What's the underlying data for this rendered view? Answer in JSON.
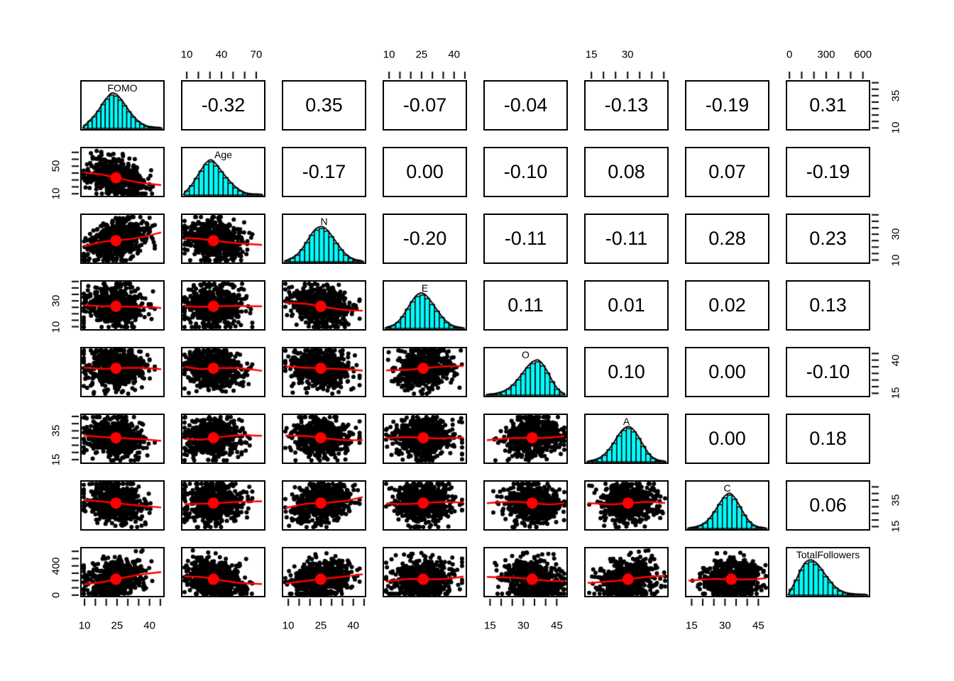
{
  "chart_data": {
    "type": "scatterplot-matrix",
    "title": "",
    "panel_layout": {
      "diagonal": "histogram-with-density",
      "upper_triangle": "correlation-coefficient",
      "lower_triangle": "scatter-with-trend-line"
    },
    "colors": {
      "histogram_fill": "#00ffff",
      "density_curve": "#000000",
      "trend_line": "#ff0000",
      "mean_dot": "#ff0000",
      "points": "#000000",
      "border": "#000000",
      "background": "#ffffff",
      "text": "#000000"
    },
    "variables": [
      {
        "name": "FOMO",
        "axis": {
          "range": [
            8,
            47
          ],
          "tick_step": 5,
          "first_tick": 10,
          "last_tick": 45,
          "h_labels": [
            "10",
            "25",
            "40"
          ],
          "v_labels": [
            "10",
            "35"
          ]
        },
        "hist": [
          0.1,
          0.22,
          0.35,
          0.52,
          0.72,
          0.88,
          1.0,
          0.97,
          0.85,
          0.68,
          0.5,
          0.34,
          0.21,
          0.12,
          0.06,
          0.03,
          0.015,
          0.008
        ],
        "center": 0.42
      },
      {
        "name": "Age",
        "axis": {
          "range": [
            5,
            78
          ],
          "tick_step": 10,
          "first_tick": 10,
          "last_tick": 70,
          "h_labels": [
            "10",
            "40",
            "70"
          ],
          "v_labels": [
            "10",
            "50"
          ]
        },
        "hist": [
          0.12,
          0.28,
          0.5,
          0.72,
          0.92,
          1.0,
          0.88,
          0.7,
          0.52,
          0.36,
          0.22,
          0.12,
          0.05,
          0.02,
          0.01,
          0.005
        ],
        "center": 0.38
      },
      {
        "name": "N",
        "axis": {
          "range": [
            7,
            46
          ],
          "tick_step": 5,
          "first_tick": 10,
          "last_tick": 45,
          "h_labels": [
            "10",
            "25",
            "40"
          ],
          "v_labels": [
            "10",
            "30"
          ]
        },
        "hist": [
          0.04,
          0.1,
          0.2,
          0.36,
          0.58,
          0.8,
          0.95,
          1.0,
          0.92,
          0.75,
          0.55,
          0.36,
          0.2,
          0.1,
          0.04,
          0.015
        ],
        "center": 0.46
      },
      {
        "name": "E",
        "axis": {
          "range": [
            7,
            46
          ],
          "tick_step": 5,
          "first_tick": 10,
          "last_tick": 45,
          "h_labels": [
            "10",
            "25",
            "40"
          ],
          "v_labels": [
            "10",
            "30"
          ]
        },
        "hist": [
          0.03,
          0.08,
          0.18,
          0.35,
          0.58,
          0.8,
          0.96,
          1.0,
          0.9,
          0.72,
          0.52,
          0.33,
          0.18,
          0.08,
          0.03,
          0.01
        ],
        "center": 0.48
      },
      {
        "name": "O",
        "axis": {
          "range": [
            12,
            50
          ],
          "tick_step": 5,
          "first_tick": 15,
          "last_tick": 45,
          "h_labels": [
            "15",
            "30",
            "45"
          ],
          "v_labels": [
            "15",
            "40"
          ]
        },
        "hist": [
          0.01,
          0.02,
          0.05,
          0.1,
          0.18,
          0.3,
          0.46,
          0.64,
          0.82,
          0.95,
          1.0,
          0.88,
          0.66,
          0.4,
          0.18,
          0.06
        ],
        "center": 0.58
      },
      {
        "name": "A",
        "axis": {
          "range": [
            12,
            47
          ],
          "tick_step": 5,
          "first_tick": 15,
          "last_tick": 45,
          "h_labels": [
            "15",
            "30"
          ],
          "v_labels": [
            "15",
            "35"
          ]
        },
        "hist": [
          0.01,
          0.04,
          0.1,
          0.2,
          0.36,
          0.56,
          0.78,
          0.94,
          1.0,
          0.9,
          0.7,
          0.46,
          0.24,
          0.1,
          0.03,
          0.01
        ],
        "center": 0.52
      },
      {
        "name": "C",
        "axis": {
          "range": [
            12,
            50
          ],
          "tick_step": 5,
          "first_tick": 15,
          "last_tick": 45,
          "h_labels": [
            "15",
            "30",
            "45"
          ],
          "v_labels": [
            "15",
            "35"
          ]
        },
        "hist": [
          0.01,
          0.03,
          0.08,
          0.16,
          0.3,
          0.5,
          0.72,
          0.92,
          1.0,
          0.88,
          0.65,
          0.4,
          0.2,
          0.08,
          0.025,
          0.008
        ],
        "center": 0.55
      },
      {
        "name": "TotalFollowers",
        "axis": {
          "range": [
            -30,
            660
          ],
          "tick_step": 100,
          "first_tick": 0,
          "last_tick": 600,
          "h_labels": [
            "0",
            "300",
            "600"
          ],
          "v_labels": [
            "0",
            "400"
          ]
        },
        "hist": [
          0.18,
          0.45,
          0.75,
          0.95,
          1.0,
          0.92,
          0.76,
          0.56,
          0.38,
          0.22,
          0.12,
          0.06,
          0.03,
          0.015,
          0.008,
          0.004
        ],
        "center": 0.35
      }
    ],
    "correlations": [
      [
        "",
        "-0.32",
        "0.35",
        "-0.07",
        "-0.04",
        "-0.13",
        "-0.19",
        "0.31"
      ],
      [
        "",
        "",
        "-0.17",
        "0.00",
        "-0.10",
        "0.08",
        "0.07",
        "-0.19"
      ],
      [
        "",
        "",
        "",
        "-0.20",
        "-0.11",
        "-0.11",
        "0.28",
        "0.23"
      ],
      [
        "",
        "",
        "",
        "",
        "0.11",
        "0.01",
        "0.02",
        "0.13"
      ],
      [
        "",
        "",
        "",
        "",
        "",
        "0.10",
        "0.00",
        "-0.10"
      ],
      [
        "",
        "",
        "",
        "",
        "",
        "",
        "0.00",
        "0.18"
      ],
      [
        "",
        "",
        "",
        "",
        "",
        "",
        "",
        "0.06"
      ],
      [
        "",
        "",
        "",
        "",
        "",
        "",
        "",
        ""
      ]
    ],
    "axes_positions": {
      "top_axis_columns": [
        "Age",
        "E",
        "A",
        "TotalFollowers"
      ],
      "bottom_axis_columns": [
        "FOMO",
        "N",
        "O",
        "C"
      ],
      "left_axis_rows": [
        "Age",
        "E",
        "A",
        "TotalFollowers"
      ],
      "right_axis_rows": [
        "FOMO",
        "N",
        "O",
        "C"
      ]
    }
  }
}
